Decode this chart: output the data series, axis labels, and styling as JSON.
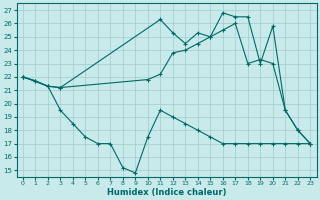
{
  "xlabel": "Humidex (Indice chaleur)",
  "bg_color": "#c8eaea",
  "grid_color": "#a8d0d0",
  "line_color": "#006868",
  "xlim": [
    -0.5,
    23.5
  ],
  "ylim": [
    14.5,
    27.5
  ],
  "xticks": [
    0,
    1,
    2,
    3,
    4,
    5,
    6,
    7,
    8,
    9,
    10,
    11,
    12,
    13,
    14,
    15,
    16,
    17,
    18,
    19,
    20,
    21,
    22,
    23
  ],
  "yticks": [
    15,
    16,
    17,
    18,
    19,
    20,
    21,
    22,
    23,
    24,
    25,
    26,
    27
  ],
  "line1_x": [
    0,
    1,
    2,
    3,
    11,
    12,
    13,
    14,
    15,
    16,
    17,
    18,
    19,
    20,
    21,
    22,
    23
  ],
  "line1_y": [
    22,
    21.7,
    21.3,
    21.2,
    26.3,
    25.3,
    24.5,
    25.3,
    25.0,
    26.8,
    26.5,
    26.5,
    23.0,
    25.8,
    19.5,
    18.0,
    17.0
  ],
  "line2_x": [
    0,
    2,
    3,
    10,
    11,
    12,
    13,
    14,
    15,
    16,
    17,
    18,
    19,
    20,
    21,
    22,
    23
  ],
  "line2_y": [
    22,
    21.3,
    21.2,
    21.8,
    22.2,
    23.8,
    24.0,
    24.5,
    25.0,
    25.5,
    26.0,
    23.0,
    23.3,
    23.0,
    19.5,
    18.0,
    17.0
  ],
  "line3_x": [
    0,
    1,
    2,
    3,
    4,
    5,
    6,
    7,
    8,
    9,
    10,
    11,
    12,
    13,
    14,
    15,
    16,
    17,
    18,
    19,
    20,
    21,
    22,
    23
  ],
  "line3_y": [
    22,
    21.7,
    21.3,
    19.5,
    18.5,
    17.5,
    17.0,
    17.0,
    15.2,
    14.8,
    17.5,
    19.5,
    19.0,
    18.5,
    18.0,
    17.5,
    17.0,
    17.0,
    17.0,
    17.0,
    17.0,
    17.0,
    17.0,
    17.0
  ]
}
